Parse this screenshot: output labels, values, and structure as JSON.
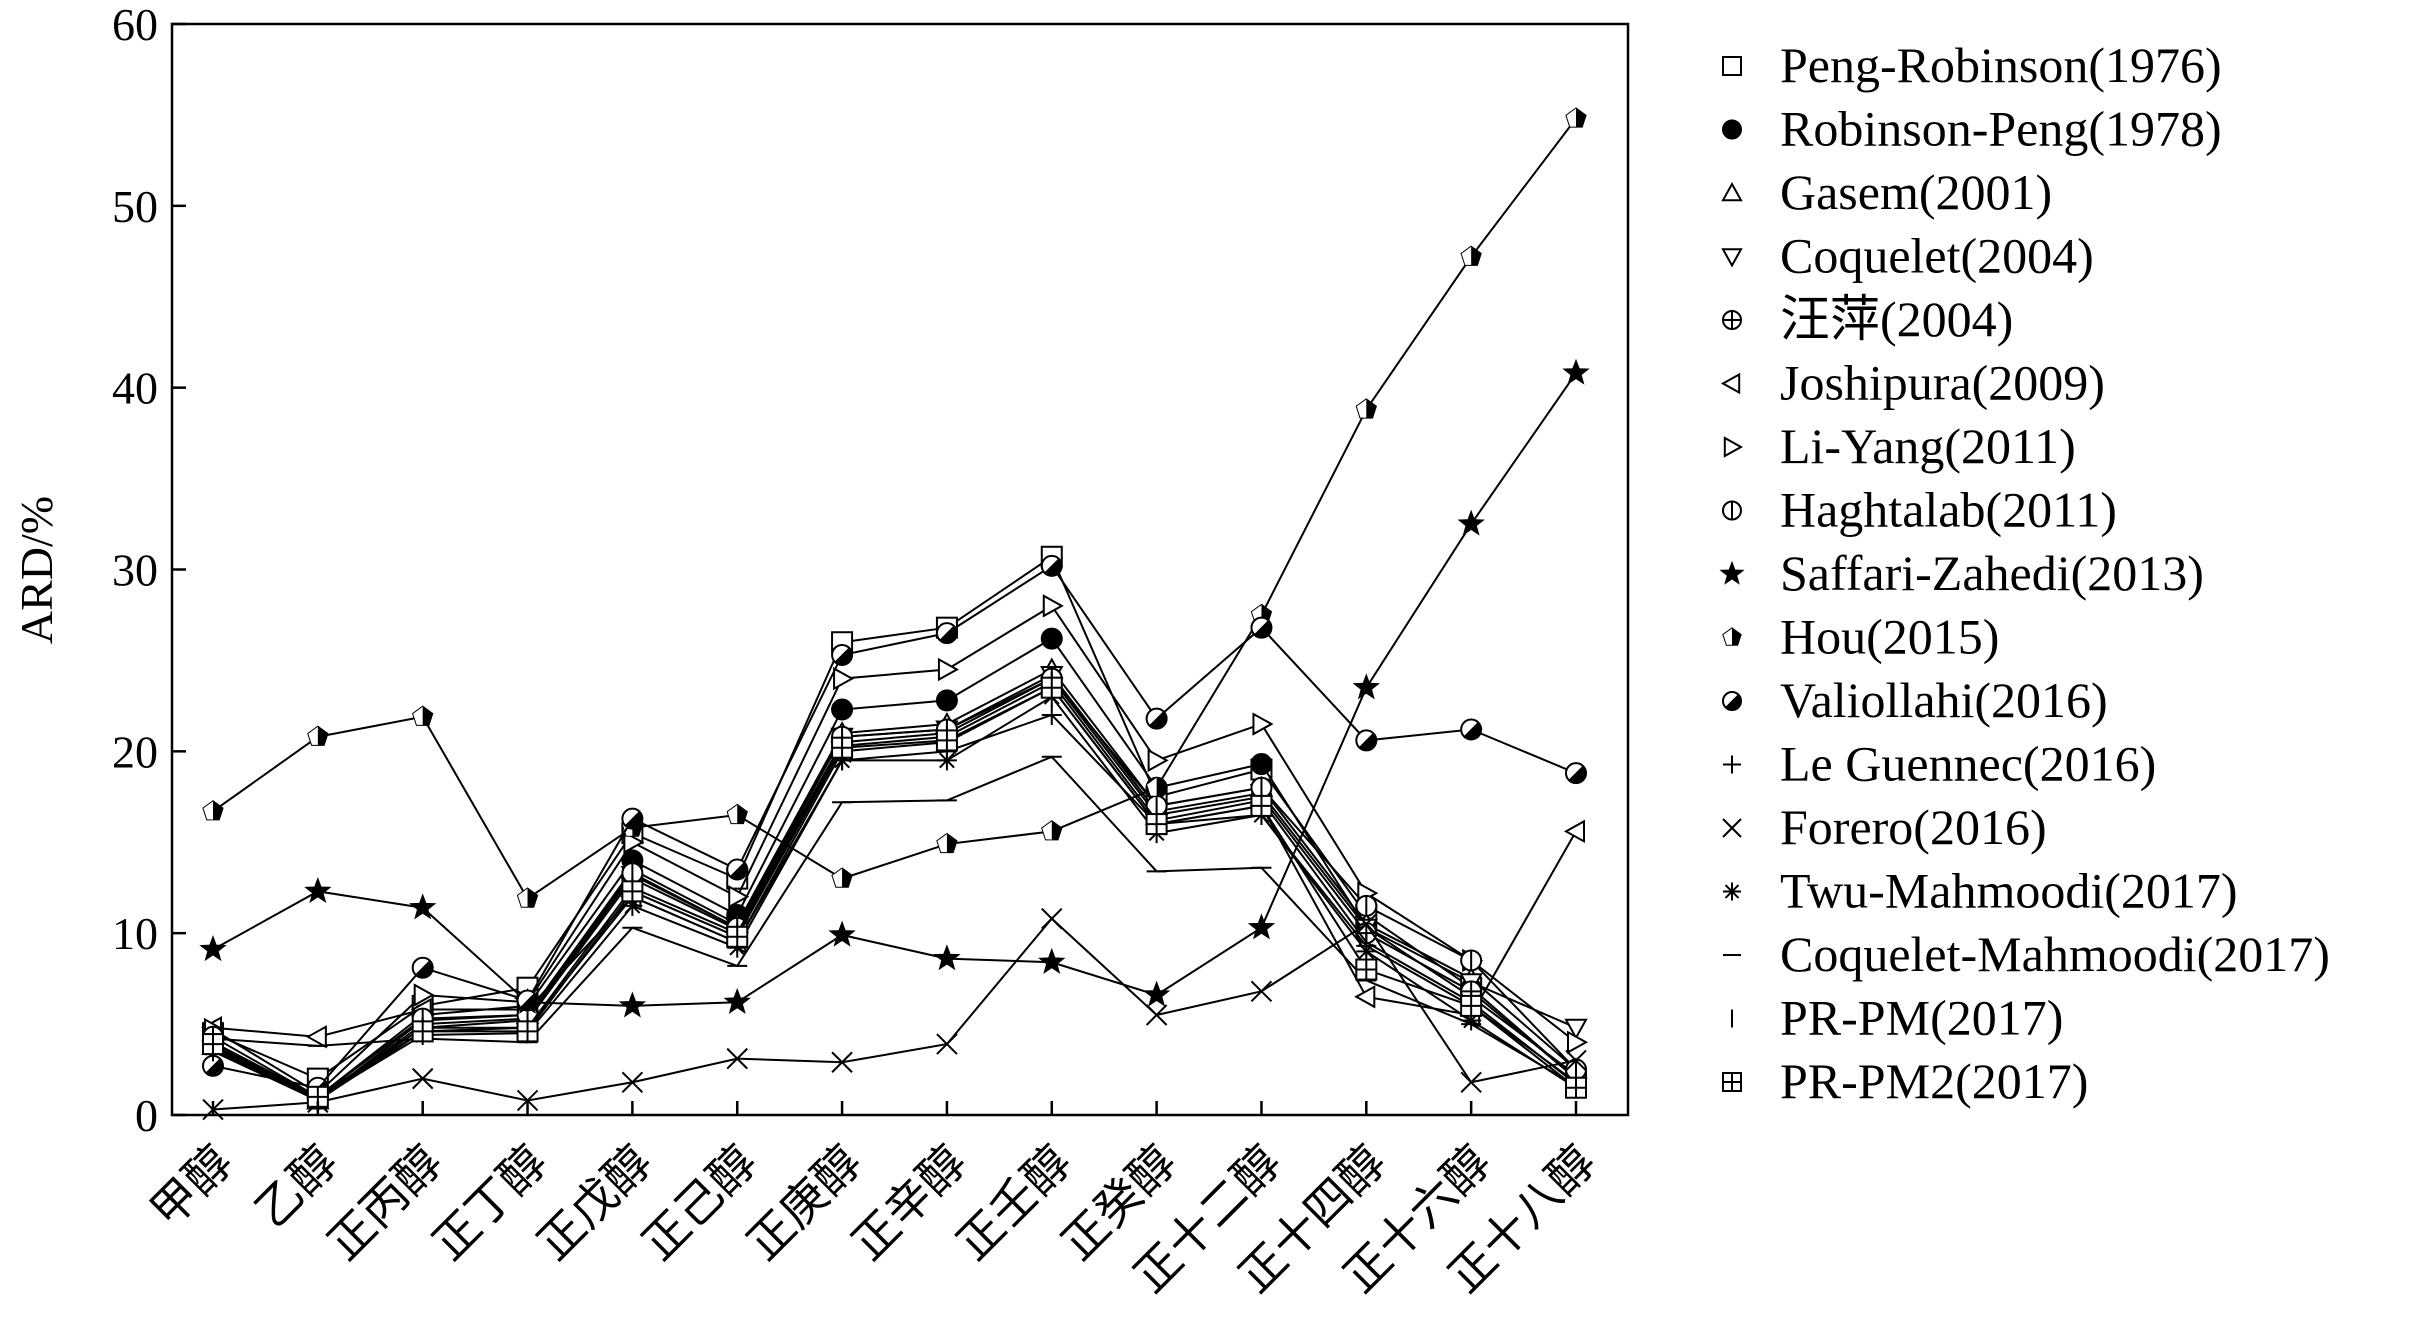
{
  "chart_data": {
    "type": "line",
    "title": "",
    "xlabel": "",
    "ylabel": "ARD/%",
    "ylim": [
      0,
      60
    ],
    "yticks": [
      0,
      10,
      20,
      30,
      40,
      50,
      60
    ],
    "grid": false,
    "legend_position": "right",
    "categories": [
      "甲醇",
      "乙醇",
      "正丙醇",
      "正丁醇",
      "正戊醇",
      "正己醇",
      "正庚醇",
      "正辛醇",
      "正壬醇",
      "正癸醇",
      "正十二醇",
      "正十四醇",
      "正十六醇",
      "正十八醇"
    ],
    "series": [
      {
        "name": "Peng-Robinson(1976)",
        "marker": "square",
        "values": [
          4.5,
          2.0,
          6.0,
          7.0,
          15.5,
          13.0,
          26.0,
          26.8,
          30.7,
          17.5,
          19.0,
          11.0,
          7.0,
          2.0
        ]
      },
      {
        "name": "Robinson-Peng(1978)",
        "marker": "circle-filled",
        "values": [
          4.0,
          1.0,
          5.5,
          6.0,
          14.0,
          11.0,
          22.3,
          22.8,
          26.2,
          18.0,
          19.3,
          10.3,
          6.5,
          2.2
        ]
      },
      {
        "name": "Gasem(2001)",
        "marker": "triangle-up",
        "values": [
          3.8,
          0.8,
          5.2,
          5.5,
          13.5,
          10.5,
          21.0,
          21.5,
          24.5,
          17.0,
          18.0,
          10.5,
          7.5,
          2.5
        ]
      },
      {
        "name": "Coquelet(2004)",
        "marker": "triangle-down",
        "values": [
          3.6,
          0.8,
          5.0,
          5.3,
          13.2,
          10.3,
          20.8,
          21.2,
          24.2,
          16.7,
          17.7,
          10.3,
          7.3,
          4.8
        ]
      },
      {
        "name": "汪萍(2004)",
        "marker": "circle-cross",
        "values": [
          3.9,
          0.9,
          4.8,
          5.2,
          13.0,
          10.2,
          20.5,
          21.0,
          24.0,
          16.5,
          17.5,
          10.0,
          6.8,
          2.0
        ]
      },
      {
        "name": "Joshipura(2009)",
        "marker": "triangle-left",
        "values": [
          4.8,
          4.3,
          5.8,
          5.8,
          12.0,
          9.5,
          20.0,
          20.5,
          23.5,
          16.0,
          17.0,
          6.5,
          5.5,
          15.6
        ]
      },
      {
        "name": "Li-Yang(2011)",
        "marker": "triangle-right",
        "values": [
          4.7,
          1.2,
          6.6,
          6.2,
          15.0,
          12.0,
          24.0,
          24.5,
          28.0,
          19.5,
          21.5,
          12.2,
          8.5,
          4.0
        ]
      },
      {
        "name": "Haghtalab(2011)",
        "marker": "circle-vbar",
        "values": [
          4.3,
          1.0,
          5.3,
          5.5,
          13.3,
          10.3,
          20.8,
          21.2,
          24.0,
          17.0,
          18.0,
          11.5,
          8.5,
          2.5
        ]
      },
      {
        "name": "Saffari-Zahedi(2013)",
        "marker": "star",
        "values": [
          9.1,
          12.3,
          11.4,
          6.2,
          6.0,
          6.2,
          9.9,
          8.6,
          8.4,
          6.6,
          10.3,
          23.5,
          32.5,
          40.8
        ]
      },
      {
        "name": "Hou(2015)",
        "marker": "pentagon-half",
        "values": [
          16.7,
          20.8,
          21.9,
          11.9,
          15.8,
          16.5,
          13.0,
          14.9,
          15.6,
          18.0,
          27.5,
          38.8,
          47.2,
          54.8
        ]
      },
      {
        "name": "Valiollahi(2016)",
        "marker": "circle-half",
        "values": [
          2.7,
          1.5,
          8.1,
          6.3,
          16.3,
          13.5,
          25.3,
          26.5,
          30.2,
          21.8,
          26.8,
          20.6,
          21.2,
          18.8
        ]
      },
      {
        "name": "Le Guennec(2016)",
        "marker": "plus",
        "values": [
          3.5,
          0.8,
          4.6,
          4.8,
          12.0,
          9.5,
          19.5,
          20.0,
          22.0,
          16.0,
          16.5,
          9.3,
          6.0,
          1.8
        ]
      },
      {
        "name": "Forero(2016)",
        "marker": "x",
        "values": [
          0.3,
          0.7,
          2.0,
          0.8,
          1.8,
          3.1,
          2.9,
          3.9,
          10.8,
          5.5,
          6.8,
          10.5,
          1.8,
          3.0
        ]
      },
      {
        "name": "Twu-Mahmoodi(2017)",
        "marker": "asterisk",
        "values": [
          3.7,
          0.9,
          4.4,
          4.5,
          11.5,
          9.2,
          19.5,
          19.5,
          23.0,
          15.5,
          16.5,
          9.0,
          5.2,
          1.5
        ]
      },
      {
        "name": "Coquelet-Mahmoodi(2017)",
        "marker": "hbar",
        "values": [
          4.2,
          3.8,
          4.2,
          4.0,
          10.3,
          8.2,
          17.2,
          17.3,
          19.7,
          13.4,
          13.6,
          7.4,
          5.0,
          1.6
        ]
      },
      {
        "name": "PR-PM(2017)",
        "marker": "vbar",
        "values": [
          4.0,
          1.0,
          4.8,
          4.8,
          12.5,
          10.0,
          20.3,
          20.8,
          23.8,
          16.2,
          17.3,
          9.5,
          6.2,
          1.7
        ]
      },
      {
        "name": "PR-PM2(2017)",
        "marker": "square-plus",
        "values": [
          3.9,
          1.0,
          4.6,
          4.6,
          12.3,
          9.8,
          20.2,
          20.6,
          23.5,
          16.0,
          17.0,
          8.0,
          6.0,
          1.5
        ]
      }
    ]
  }
}
